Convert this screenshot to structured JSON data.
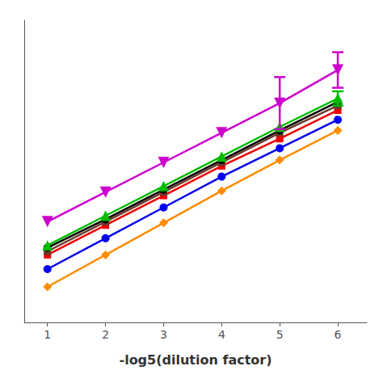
{
  "chart_data": {
    "type": "line",
    "xlabel": "-log5(dilution factor)",
    "x": [
      1,
      2,
      3,
      4,
      5,
      6
    ],
    "xlim": [
      0.6,
      6.5
    ],
    "xticks": [
      1,
      2,
      3,
      4,
      5,
      6
    ],
    "ylim": [
      -3.5,
      22
    ],
    "grid": false,
    "tick_labels": "x",
    "series": [
      {
        "color": "#CC00CC",
        "marker": "triangle-down",
        "values": [
          5.0,
          7.5,
          10.0,
          12.5,
          15.0,
          17.8
        ],
        "yerr": [
          null,
          null,
          null,
          null,
          2.2,
          1.5
        ]
      },
      {
        "color": "#00BB00",
        "marker": "triangle-up",
        "values": [
          3.0,
          5.5,
          8.0,
          10.5,
          13.0,
          15.4
        ],
        "yerr": [
          null,
          null,
          null,
          null,
          null,
          0.6
        ]
      },
      {
        "color": "#000000",
        "marker": "circle",
        "values": [
          2.8,
          5.2,
          7.7,
          10.2,
          12.7,
          15.1
        ]
      },
      {
        "color": "#6B3A2A",
        "marker": "square",
        "values": [
          2.5,
          5.0,
          7.5,
          10.0,
          12.5,
          14.8
        ]
      },
      {
        "color": "#EE0000",
        "marker": "square",
        "values": [
          2.2,
          4.7,
          7.2,
          9.7,
          12.0,
          14.4
        ]
      },
      {
        "color": "#0000EE",
        "marker": "circle",
        "values": [
          1.0,
          3.6,
          6.2,
          8.8,
          11.2,
          13.6
        ]
      },
      {
        "color": "#FF8C00",
        "marker": "diamond",
        "values": [
          -0.5,
          2.2,
          4.9,
          7.6,
          10.2,
          12.7
        ]
      }
    ]
  }
}
